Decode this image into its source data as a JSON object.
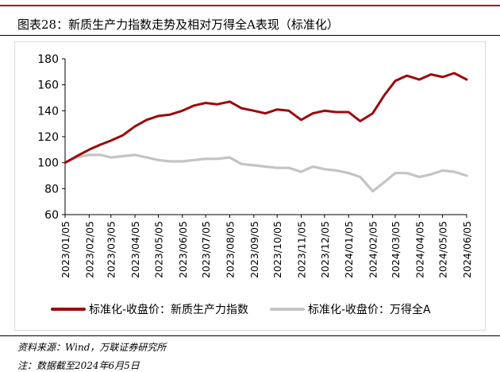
{
  "figure": {
    "title": "图表28：新质生产力指数走势及相对万得全A表现（标准化）",
    "source": "资料来源：Wind，万联证券研究所",
    "note": "注：数据截至2024年6月5日"
  },
  "chart_data": {
    "type": "line",
    "ylim": [
      60,
      180
    ],
    "yticks": [
      60,
      80,
      100,
      120,
      140,
      160,
      180
    ],
    "grid": false,
    "legend_position": "bottom",
    "x_tick_labels": [
      "2023/01/05",
      "2023/02/05",
      "2023/03/05",
      "2023/04/05",
      "2023/05/05",
      "2023/06/05",
      "2023/07/05",
      "2023/08/05",
      "2023/09/05",
      "2023/10/05",
      "2023/11/05",
      "2023/12/05",
      "2024/01/05",
      "2024/02/05",
      "2024/03/05",
      "2024/04/05",
      "2024/05/05",
      "2024/06/05"
    ],
    "x": [
      "2023/01/05",
      "2023/01/20",
      "2023/02/05",
      "2023/02/20",
      "2023/03/05",
      "2023/03/20",
      "2023/04/05",
      "2023/04/20",
      "2023/05/05",
      "2023/05/20",
      "2023/06/05",
      "2023/06/20",
      "2023/07/05",
      "2023/07/20",
      "2023/08/05",
      "2023/08/20",
      "2023/09/05",
      "2023/09/20",
      "2023/10/05",
      "2023/10/20",
      "2023/11/05",
      "2023/11/20",
      "2023/12/05",
      "2023/12/20",
      "2024/01/05",
      "2024/01/20",
      "2024/02/05",
      "2024/02/20",
      "2024/03/05",
      "2024/03/20",
      "2024/04/05",
      "2024/04/20",
      "2024/05/05",
      "2024/05/20",
      "2024/06/05"
    ],
    "series": [
      {
        "name": "标准化-收盘价：新质生产力指数",
        "color": "#9b0a0d",
        "values": [
          100,
          105,
          110,
          114,
          117,
          121,
          128,
          133,
          136,
          137,
          140,
          144,
          146,
          145,
          147,
          142,
          140,
          138,
          141,
          140,
          133,
          138,
          140,
          139,
          139,
          132,
          138,
          152,
          163,
          167,
          164,
          168,
          166,
          169,
          164
        ]
      },
      {
        "name": "标准化-收盘价：万得全A",
        "color": "#c4c4c4",
        "values": [
          100,
          104,
          106,
          106,
          104,
          105,
          106,
          104,
          102,
          101,
          101,
          102,
          103,
          103,
          104,
          99,
          98,
          97,
          96,
          96,
          93,
          97,
          95,
          94,
          92,
          89,
          78,
          85,
          92,
          92,
          89,
          91,
          94,
          93,
          90
        ]
      }
    ]
  }
}
